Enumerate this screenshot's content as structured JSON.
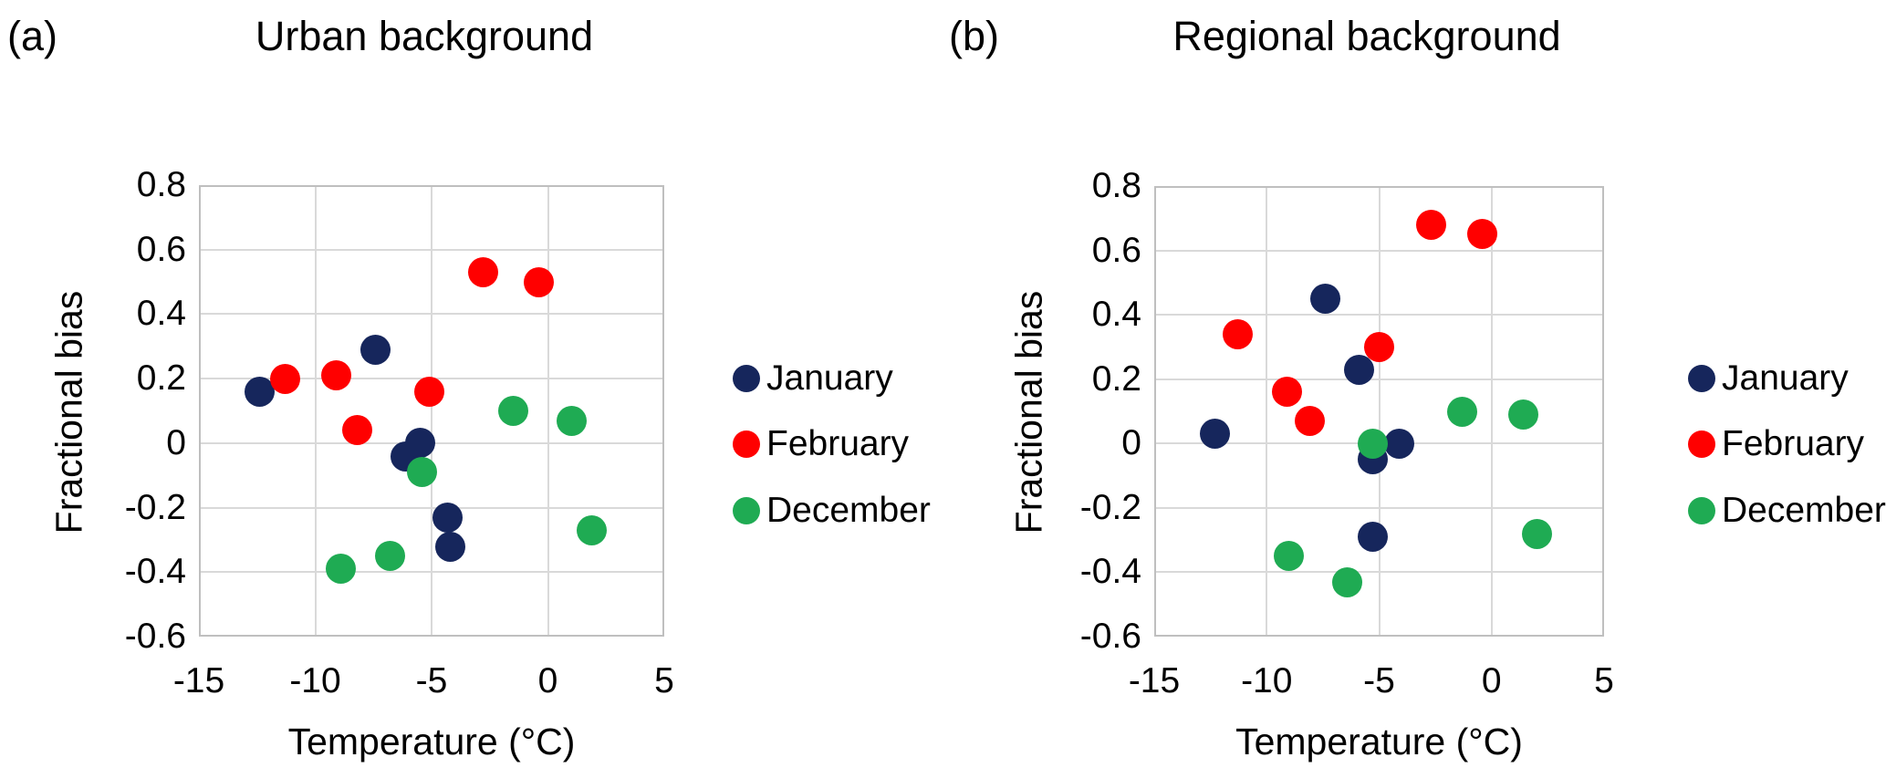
{
  "figure": {
    "background": "#FFFFFF",
    "text_color": "#000000",
    "grid_color": "#D9D9D9",
    "plot_border_color": "#BFBFBF"
  },
  "chart_data": [
    {
      "type": "scatter",
      "panel_label": "(a)",
      "title": "Urban background",
      "xlabel": "Temperature (°C)",
      "ylabel": "Fractional bias",
      "xlim": [
        -15,
        5
      ],
      "ylim": [
        -0.6,
        0.8
      ],
      "x_ticks": [
        "-15",
        "-10",
        "-5",
        "0",
        "5"
      ],
      "y_ticks": [
        "0.8",
        "0.6",
        "0.4",
        "0.2",
        "0",
        "-0.2",
        "-0.4",
        "-0.6"
      ],
      "grid": true,
      "legend_position": "right",
      "series": [
        {
          "name": "January",
          "color": "#16265C",
          "points": [
            [
              -12.4,
              0.16
            ],
            [
              -7.4,
              0.29
            ],
            [
              -6.1,
              -0.04
            ],
            [
              -5.5,
              0.0
            ],
            [
              -4.3,
              -0.23
            ],
            [
              -4.2,
              -0.32
            ]
          ]
        },
        {
          "name": "February",
          "color": "#FF0000",
          "points": [
            [
              -11.3,
              0.2
            ],
            [
              -9.1,
              0.21
            ],
            [
              -8.2,
              0.04
            ],
            [
              -5.1,
              0.16
            ],
            [
              -2.8,
              0.53
            ],
            [
              -0.4,
              0.5
            ]
          ]
        },
        {
          "name": "December",
          "color": "#1FAB53",
          "points": [
            [
              -8.9,
              -0.39
            ],
            [
              -6.8,
              -0.35
            ],
            [
              -5.4,
              -0.09
            ],
            [
              -1.5,
              0.1
            ],
            [
              1.0,
              0.07
            ],
            [
              1.9,
              -0.27
            ]
          ]
        }
      ]
    },
    {
      "type": "scatter",
      "panel_label": "(b)",
      "title": "Regional background",
      "xlabel": "Temperature (°C)",
      "ylabel": "Fractional bias",
      "xlim": [
        -15,
        5
      ],
      "ylim": [
        -0.6,
        0.8
      ],
      "x_ticks": [
        "-15",
        "-10",
        "-5",
        "0",
        "5"
      ],
      "y_ticks": [
        "0.8",
        "0.6",
        "0.4",
        "0.2",
        "0",
        "-0.2",
        "-0.4",
        "-0.6"
      ],
      "grid": true,
      "legend_position": "right",
      "series": [
        {
          "name": "January",
          "color": "#16265C",
          "points": [
            [
              -12.3,
              0.03
            ],
            [
              -7.4,
              0.45
            ],
            [
              -5.9,
              0.23
            ],
            [
              -5.3,
              -0.05
            ],
            [
              -5.3,
              -0.29
            ],
            [
              -4.1,
              0.0
            ]
          ]
        },
        {
          "name": "February",
          "color": "#FF0000",
          "points": [
            [
              -11.3,
              0.34
            ],
            [
              -9.1,
              0.16
            ],
            [
              -8.1,
              0.07
            ],
            [
              -5.0,
              0.3
            ],
            [
              -2.7,
              0.68
            ],
            [
              -0.4,
              0.65
            ]
          ]
        },
        {
          "name": "December",
          "color": "#1FAB53",
          "points": [
            [
              -9.0,
              -0.35
            ],
            [
              -6.4,
              -0.43
            ],
            [
              -5.3,
              0.0
            ],
            [
              -1.3,
              0.1
            ],
            [
              1.4,
              0.09
            ],
            [
              2.0,
              -0.28
            ]
          ]
        }
      ]
    }
  ]
}
